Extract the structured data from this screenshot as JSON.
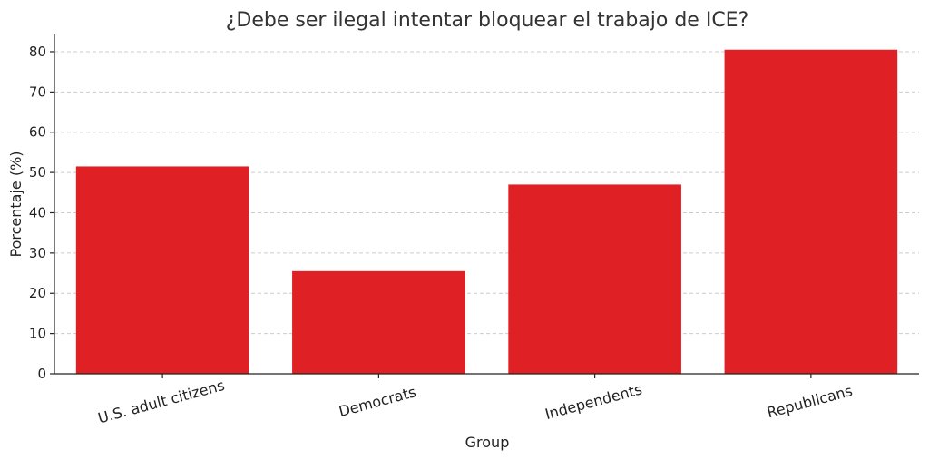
{
  "chart_data": {
    "type": "bar",
    "title": "¿Debe ser ilegal intentar bloquear el trabajo de ICE?",
    "xlabel": "Group",
    "ylabel": "Porcentaje (%)",
    "categories": [
      "U.S. adult citizens",
      "Democrats",
      "Independents",
      "Republicans"
    ],
    "values": [
      51.5,
      25.5,
      47,
      80.5
    ],
    "ylim": [
      0,
      84.5
    ],
    "yticks": [
      0,
      10,
      20,
      30,
      40,
      50,
      60,
      70,
      80
    ],
    "grid": "y-dashed",
    "bar_color": "#df2024"
  }
}
